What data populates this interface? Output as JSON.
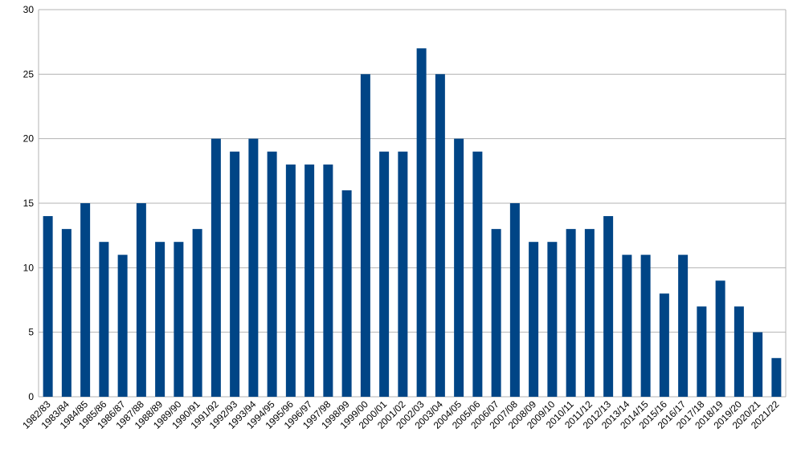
{
  "chart_data": {
    "type": "bar",
    "categories": [
      "1982/83",
      "1983/84",
      "1984/85",
      "1985/86",
      "1986/87",
      "1987/88",
      "1988/89",
      "1989/90",
      "1990/91",
      "1991/92",
      "1992/93",
      "1993/94",
      "1994/95",
      "1995/96",
      "1996/97",
      "1997/98",
      "1998/99",
      "1999/00",
      "2000/01",
      "2001/02",
      "2002/03",
      "2003/04",
      "2004/05",
      "2005/06",
      "2006/07",
      "2007/08",
      "2008/09",
      "2009/10",
      "2010/11",
      "2011/12",
      "2012/13",
      "2013/14",
      "2014/15",
      "2015/16",
      "2016/17",
      "2017/18",
      "2018/19",
      "2019/20",
      "2020/21",
      "2021/22"
    ],
    "values": [
      14,
      13,
      15,
      12,
      11,
      15,
      12,
      12,
      13,
      20,
      19,
      20,
      19,
      18,
      18,
      18,
      16,
      25,
      19,
      19,
      27,
      25,
      20,
      19,
      13,
      15,
      12,
      12,
      13,
      13,
      14,
      11,
      11,
      8,
      11,
      7,
      9,
      7,
      5,
      3
    ],
    "color": "#004586",
    "ylim": [
      0,
      30
    ],
    "yticks": [
      0,
      5,
      10,
      15,
      20,
      25,
      30
    ],
    "grid": true
  }
}
